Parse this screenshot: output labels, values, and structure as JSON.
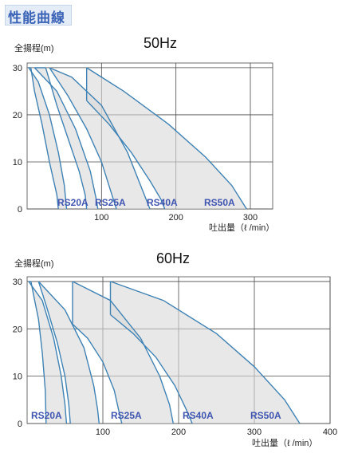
{
  "header": {
    "title": "性能曲線"
  },
  "chart_data": [
    {
      "type": "line",
      "title": "50Hz",
      "ylabel": "全揚程(m)",
      "xlabel": "吐出量（ℓ /min）",
      "xlim": [
        0,
        330
      ],
      "ylim": [
        0,
        31
      ],
      "xticks": [
        0,
        100,
        200,
        300
      ],
      "xtick_labels": [
        "",
        "100",
        "200",
        "300"
      ],
      "yticks": [
        0,
        10,
        20,
        30
      ],
      "ytick_labels": [
        "0",
        "10",
        "20",
        "30"
      ],
      "grid": true,
      "series": [
        {
          "name": "RS20A",
          "color": "#3f82b4",
          "upper": [
            [
              2,
              30
            ],
            [
              15,
              27
            ],
            [
              30,
              20
            ],
            [
              42,
              12
            ],
            [
              50,
              5
            ],
            [
              53,
              0
            ]
          ],
          "lower": [
            [
              5,
              30
            ],
            [
              10,
              25
            ],
            [
              20,
              18
            ],
            [
              30,
              10
            ],
            [
              40,
              3
            ],
            [
              42,
              0
            ]
          ]
        },
        {
          "name": "RS25A",
          "color": "#3f82b4",
          "upper": [
            [
              10,
              30
            ],
            [
              40,
              25
            ],
            [
              65,
              17
            ],
            [
              85,
              8
            ],
            [
              93,
              2
            ],
            [
              95,
              0
            ]
          ],
          "lower": [
            [
              25,
              30
            ],
            [
              40,
              22
            ],
            [
              55,
              15
            ],
            [
              70,
              8
            ],
            [
              78,
              3
            ],
            [
              80,
              0
            ]
          ]
        },
        {
          "name": "RS40A",
          "color": "#3f82b4",
          "upper": [
            [
              30,
              30
            ],
            [
              60,
              28
            ],
            [
              100,
              22
            ],
            [
              135,
              12
            ],
            [
              155,
              4
            ],
            [
              165,
              0
            ]
          ],
          "lower": [
            [
              30,
              30
            ],
            [
              55,
              24
            ],
            [
              80,
              17
            ],
            [
              100,
              10
            ],
            [
              112,
              4
            ],
            [
              120,
              0
            ]
          ]
        },
        {
          "name": "RS50A",
          "color": "#3f82b4",
          "upper": [
            [
              80,
              30
            ],
            [
              130,
              25
            ],
            [
              190,
              18
            ],
            [
              240,
              11
            ],
            [
              275,
              5
            ],
            [
              295,
              0
            ]
          ],
          "lower": [
            [
              80,
              23
            ],
            [
              110,
              18
            ],
            [
              140,
              12
            ],
            [
              165,
              6
            ],
            [
              180,
              2
            ],
            [
              185,
              0
            ]
          ]
        }
      ]
    },
    {
      "type": "line",
      "title": "60Hz",
      "ylabel": "全揚程(m)",
      "xlabel": "吐出量（ℓ /min）",
      "xlim": [
        0,
        400
      ],
      "ylim": [
        0,
        31
      ],
      "xticks": [
        0,
        100,
        200,
        300,
        400
      ],
      "xtick_labels": [
        "",
        "100",
        "200",
        "300",
        "400"
      ],
      "yticks": [
        0,
        10,
        20,
        30
      ],
      "ytick_labels": [
        "0",
        "10",
        "20",
        "30"
      ],
      "grid": true,
      "series": [
        {
          "name": "RS20A",
          "color": "#3f82b4",
          "upper": [
            [
              2,
              30
            ],
            [
              20,
              26
            ],
            [
              35,
              18
            ],
            [
              45,
              10
            ],
            [
              50,
              4
            ],
            [
              52,
              0
            ]
          ],
          "lower": [
            [
              5,
              30
            ],
            [
              10,
              26
            ],
            [
              15,
              22
            ],
            [
              20,
              15
            ],
            [
              24,
              7
            ],
            [
              25,
              0
            ]
          ]
        },
        {
          "name": "RS25A",
          "color": "#3f82b4",
          "upper": [
            [
              15,
              30
            ],
            [
              50,
              24
            ],
            [
              75,
              16
            ],
            [
              88,
              8
            ],
            [
              93,
              3
            ],
            [
              95,
              0
            ]
          ],
          "lower": [
            [
              15,
              30
            ],
            [
              25,
              25
            ],
            [
              40,
              17
            ],
            [
              50,
              10
            ],
            [
              55,
              4
            ],
            [
              57,
              0
            ]
          ]
        },
        {
          "name": "RS40A",
          "color": "#3f82b4",
          "upper": [
            [
              60,
              30
            ],
            [
              110,
              26
            ],
            [
              150,
              18
            ],
            [
              175,
              10
            ],
            [
              188,
              4
            ],
            [
              193,
              0
            ]
          ],
          "lower": [
            [
              60,
              21
            ],
            [
              80,
              18
            ],
            [
              100,
              13
            ],
            [
              115,
              7
            ],
            [
              122,
              2
            ],
            [
              125,
              0
            ]
          ]
        },
        {
          "name": "RS50A",
          "color": "#3f82b4",
          "upper": [
            [
              110,
              30
            ],
            [
              180,
              26
            ],
            [
              250,
              19
            ],
            [
              300,
              12
            ],
            [
              340,
              5
            ],
            [
              360,
              0
            ]
          ],
          "lower": [
            [
              110,
              23
            ],
            [
              140,
              19
            ],
            [
              170,
              14
            ],
            [
              195,
              8
            ],
            [
              210,
              3
            ],
            [
              218,
              0
            ]
          ]
        }
      ]
    }
  ]
}
